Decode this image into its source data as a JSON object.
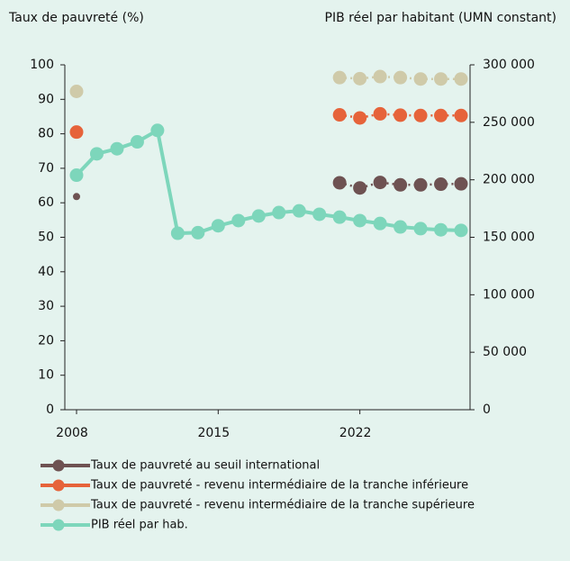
{
  "chart_data": {
    "type": "line",
    "y_title": "Taux de pauvreté (%)",
    "y2_title": "PIB réel par habitant (UMN constant)",
    "x": [
      2008,
      2009,
      2010,
      2011,
      2012,
      2013,
      2014,
      2015,
      2016,
      2017,
      2018,
      2019,
      2020,
      2021,
      2022,
      2023,
      2024,
      2025,
      2026,
      2027
    ],
    "xlim": [
      2008,
      2027
    ],
    "xticks": [
      2008,
      2015,
      2022
    ],
    "ylim": [
      0,
      100
    ],
    "yticks": [
      0,
      10,
      20,
      30,
      40,
      50,
      60,
      70,
      80,
      90,
      100
    ],
    "y2lim": [
      0,
      300000
    ],
    "y2ticks": [
      0,
      {
        "value": 50000,
        "label": "50 000"
      },
      {
        "value": 100000,
        "label": "100 000"
      },
      {
        "value": 150000,
        "label": "150 000"
      },
      {
        "value": 200000,
        "label": "200 000"
      },
      {
        "value": 250000,
        "label": "250 000"
      },
      {
        "value": 300000,
        "label": "300 000"
      }
    ],
    "series": [
      {
        "name": "Taux de pauvreté au seuil international",
        "color": "#6e5252",
        "values": [
          61.8,
          null,
          null,
          null,
          null,
          null,
          null,
          null,
          null,
          null,
          null,
          null,
          null,
          65.8,
          64.3,
          65.9,
          65.2,
          65.2,
          65.4,
          65.5
        ]
      },
      {
        "name": "Taux de pauvreté - revenu intermédiaire de la tranche inférieure",
        "color": "#e6633a",
        "values": [
          80.5,
          null,
          null,
          null,
          null,
          null,
          null,
          null,
          null,
          null,
          null,
          null,
          null,
          85.5,
          84.6,
          85.8,
          85.4,
          85.3,
          85.3,
          85.3
        ]
      },
      {
        "name": "Taux de pauvreté - revenu intermédiaire de la tranche supérieure",
        "color": "#cfcaa9",
        "values": [
          92.3,
          null,
          null,
          null,
          null,
          null,
          null,
          null,
          null,
          null,
          null,
          null,
          null,
          96.3,
          96.0,
          96.6,
          96.3,
          95.9,
          95.9,
          95.9
        ]
      },
      {
        "name": "PIB réel par hab.",
        "color": "#7dd6bb",
        "axis": "y2",
        "values": [
          204000,
          222600,
          227000,
          233000,
          243000,
          153500,
          154000,
          160000,
          164500,
          168500,
          171500,
          173000,
          170000,
          167500,
          164500,
          162000,
          159000,
          157500,
          156500,
          156000
        ]
      }
    ]
  }
}
